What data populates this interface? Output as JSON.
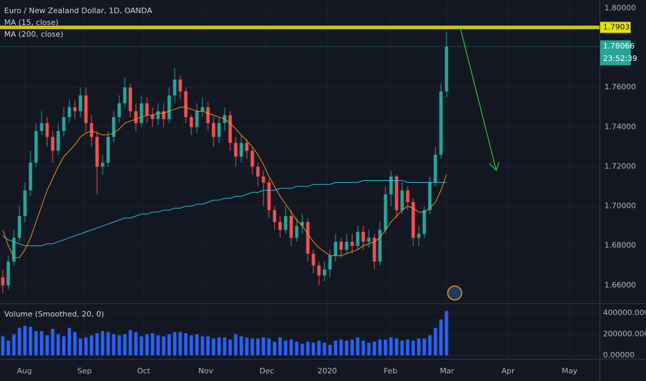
{
  "chart_data": {
    "type": "candlestick",
    "title": "Euro / New Zealand Dollar, 1D, OANDA",
    "indicators": [
      "MA (15, close)",
      "MA (200, close)"
    ],
    "volume_title": "Volume (Smoothed, 20, 0)",
    "up_color": "#26a69a",
    "down_color": "#ef5350",
    "xlim": [
      -0.5,
      107.6
    ],
    "xticks": [
      {
        "value": 3.9,
        "label": "Aug"
      },
      {
        "value": 14.75,
        "label": "Sep"
      },
      {
        "value": 25.4,
        "label": "Oct"
      },
      {
        "value": 36.6,
        "label": "Nov"
      },
      {
        "value": 47.6,
        "label": "Dec"
      },
      {
        "value": 58.5,
        "label": "2020"
      },
      {
        "value": 69.9,
        "label": "Feb"
      },
      {
        "value": 80.1,
        "label": "Mar"
      },
      {
        "value": 91.1,
        "label": "Apr"
      },
      {
        "value": 102.2,
        "label": "May"
      }
    ],
    "ylim": [
      1.6512,
      1.8042
    ],
    "yticks": [
      {
        "value": 1.66,
        "label": "1.66000"
      },
      {
        "value": 1.68,
        "label": "1.68000"
      },
      {
        "value": 1.7,
        "label": "1.70000"
      },
      {
        "value": 1.72,
        "label": "1.72000"
      },
      {
        "value": 1.74,
        "label": "1.74000"
      },
      {
        "value": 1.76,
        "label": "1.76000"
      },
      {
        "value": 1.8,
        "label": "1.80000"
      }
    ],
    "horizontal_line": {
      "value": 1.79035,
      "color": "#e6e600"
    },
    "last_price": 1.78066,
    "countdown": "23:52:39",
    "open": [
      1.664,
      1.66,
      1.672,
      1.684,
      1.695,
      1.708,
      1.722,
      1.738,
      1.742,
      1.735,
      1.728,
      1.738,
      1.745,
      1.75,
      1.748,
      1.756,
      1.742,
      1.735,
      1.72,
      1.722,
      1.735,
      1.745,
      1.752,
      1.76,
      1.748,
      1.742,
      1.752,
      1.746,
      1.744,
      1.748,
      1.744,
      1.756,
      1.764,
      1.758,
      1.745,
      1.74,
      1.748,
      1.75,
      1.742,
      1.735,
      1.742,
      1.746,
      1.732,
      1.725,
      1.732,
      1.728,
      1.72,
      1.715,
      1.712,
      1.698,
      1.692,
      1.688,
      1.695,
      1.684,
      1.69,
      1.692,
      1.676,
      1.67,
      1.665,
      1.668,
      1.675,
      1.682,
      1.678,
      1.682,
      1.68,
      1.687,
      1.682,
      1.684,
      1.672,
      1.688,
      1.706,
      1.715,
      1.698,
      1.708,
      1.702,
      1.684,
      1.686,
      1.698,
      1.712,
      1.726,
      1.758
    ],
    "high": [
      1.668,
      1.675,
      1.688,
      1.7,
      1.712,
      1.728,
      1.742,
      1.748,
      1.745,
      1.738,
      1.742,
      1.75,
      1.754,
      1.754,
      1.76,
      1.76,
      1.746,
      1.738,
      1.726,
      1.738,
      1.748,
      1.756,
      1.765,
      1.762,
      1.752,
      1.756,
      1.755,
      1.75,
      1.752,
      1.752,
      1.76,
      1.77,
      1.766,
      1.76,
      1.746,
      1.752,
      1.755,
      1.753,
      1.745,
      1.745,
      1.75,
      1.748,
      1.735,
      1.736,
      1.734,
      1.73,
      1.722,
      1.718,
      1.714,
      1.7,
      1.695,
      1.7,
      1.698,
      1.694,
      1.696,
      1.694,
      1.678,
      1.672,
      1.672,
      1.678,
      1.686,
      1.684,
      1.686,
      1.686,
      1.69,
      1.69,
      1.688,
      1.686,
      1.692,
      1.71,
      1.718,
      1.716,
      1.712,
      1.71,
      1.704,
      1.69,
      1.7,
      1.715,
      1.73,
      1.762,
      1.788
    ],
    "low": [
      1.656,
      1.658,
      1.67,
      1.682,
      1.692,
      1.705,
      1.72,
      1.736,
      1.73,
      1.722,
      1.726,
      1.735,
      1.742,
      1.744,
      1.745,
      1.738,
      1.73,
      1.706,
      1.716,
      1.72,
      1.732,
      1.742,
      1.75,
      1.745,
      1.738,
      1.74,
      1.742,
      1.74,
      1.741,
      1.74,
      1.742,
      1.752,
      1.754,
      1.742,
      1.736,
      1.737,
      1.745,
      1.738,
      1.73,
      1.732,
      1.738,
      1.728,
      1.72,
      1.722,
      1.724,
      1.716,
      1.71,
      1.7,
      1.694,
      1.688,
      1.684,
      1.686,
      1.68,
      1.682,
      1.686,
      1.672,
      1.666,
      1.66,
      1.662,
      1.664,
      1.672,
      1.674,
      1.676,
      1.676,
      1.678,
      1.678,
      1.679,
      1.668,
      1.67,
      1.686,
      1.7,
      1.694,
      1.696,
      1.698,
      1.68,
      1.68,
      1.684,
      1.696,
      1.71,
      1.724,
      1.755
    ],
    "close": [
      1.66,
      1.672,
      1.684,
      1.695,
      1.708,
      1.722,
      1.738,
      1.742,
      1.735,
      1.728,
      1.738,
      1.745,
      1.75,
      1.748,
      1.756,
      1.742,
      1.735,
      1.72,
      1.722,
      1.735,
      1.745,
      1.752,
      1.76,
      1.748,
      1.742,
      1.752,
      1.746,
      1.744,
      1.748,
      1.744,
      1.756,
      1.764,
      1.758,
      1.745,
      1.74,
      1.748,
      1.75,
      1.742,
      1.735,
      1.742,
      1.746,
      1.732,
      1.725,
      1.732,
      1.728,
      1.72,
      1.715,
      1.712,
      1.698,
      1.692,
      1.688,
      1.695,
      1.684,
      1.69,
      1.692,
      1.676,
      1.67,
      1.665,
      1.668,
      1.675,
      1.682,
      1.678,
      1.682,
      1.68,
      1.687,
      1.682,
      1.684,
      1.672,
      1.688,
      1.706,
      1.715,
      1.698,
      1.708,
      1.702,
      1.684,
      1.686,
      1.698,
      1.712,
      1.726,
      1.758,
      1.78066
    ],
    "series": [
      {
        "name": "MA (15, close)",
        "color": "#f7931a",
        "values": [
          1.688,
          1.68,
          1.674,
          1.674,
          1.678,
          1.684,
          1.692,
          1.7,
          1.708,
          1.714,
          1.72,
          1.725,
          1.728,
          1.731,
          1.735,
          1.737,
          1.738,
          1.737,
          1.736,
          1.736,
          1.737,
          1.739,
          1.742,
          1.743,
          1.744,
          1.745,
          1.746,
          1.746,
          1.747,
          1.747,
          1.748,
          1.749,
          1.75,
          1.75,
          1.749,
          1.748,
          1.748,
          1.747,
          1.746,
          1.745,
          1.744,
          1.742,
          1.739,
          1.736,
          1.733,
          1.73,
          1.726,
          1.721,
          1.715,
          1.71,
          1.705,
          1.701,
          1.697,
          1.693,
          1.69,
          1.686,
          1.682,
          1.679,
          1.677,
          1.675,
          1.675,
          1.675,
          1.676,
          1.677,
          1.678,
          1.68,
          1.681,
          1.682,
          1.684,
          1.688,
          1.692,
          1.695,
          1.698,
          1.7,
          1.699,
          1.697,
          1.697,
          1.699,
          1.702,
          1.708,
          1.716
        ]
      },
      {
        "name": "MA (200, close)",
        "color": "#26c6da",
        "values": [
          1.685,
          1.683,
          1.682,
          1.681,
          1.68,
          1.68,
          1.68,
          1.68,
          1.681,
          1.681,
          1.682,
          1.683,
          1.684,
          1.685,
          1.686,
          1.687,
          1.688,
          1.689,
          1.69,
          1.691,
          1.692,
          1.693,
          1.694,
          1.694,
          1.695,
          1.696,
          1.696,
          1.697,
          1.697,
          1.698,
          1.698,
          1.699,
          1.699,
          1.7,
          1.7,
          1.701,
          1.701,
          1.702,
          1.703,
          1.703,
          1.704,
          1.704,
          1.705,
          1.705,
          1.706,
          1.707,
          1.707,
          1.708,
          1.708,
          1.708,
          1.709,
          1.709,
          1.709,
          1.71,
          1.71,
          1.71,
          1.711,
          1.711,
          1.711,
          1.711,
          1.712,
          1.712,
          1.712,
          1.712,
          1.712,
          1.713,
          1.713,
          1.713,
          1.713,
          1.713,
          1.713,
          1.713,
          1.713,
          1.712,
          1.712,
          1.712,
          1.712,
          1.712,
          1.712,
          1.712,
          1.712
        ]
      }
    ],
    "volume": {
      "color": "#2962ff",
      "ylim": [
        -32800,
        478700
      ],
      "yticks": [
        {
          "value": 0,
          "label": "0.00000"
        },
        {
          "value": 200000,
          "label": "200000.00000"
        },
        {
          "value": 400000,
          "label": "400000.00000"
        }
      ],
      "values": [
        180000,
        140000,
        200000,
        260000,
        280000,
        270000,
        230000,
        230000,
        190000,
        250000,
        200000,
        180000,
        260000,
        220000,
        160000,
        170000,
        190000,
        210000,
        230000,
        220000,
        200000,
        190000,
        200000,
        240000,
        220000,
        180000,
        200000,
        210000,
        190000,
        180000,
        200000,
        220000,
        220000,
        210000,
        190000,
        200000,
        180000,
        180000,
        160000,
        170000,
        170000,
        150000,
        200000,
        180000,
        170000,
        160000,
        160000,
        170000,
        160000,
        130000,
        170000,
        140000,
        150000,
        130000,
        110000,
        130000,
        120000,
        140000,
        120000,
        100000,
        140000,
        150000,
        140000,
        150000,
        170000,
        140000,
        120000,
        130000,
        150000,
        150000,
        170000,
        160000,
        140000,
        150000,
        140000,
        160000,
        160000,
        190000,
        260000,
        340000,
        420000
      ]
    }
  }
}
